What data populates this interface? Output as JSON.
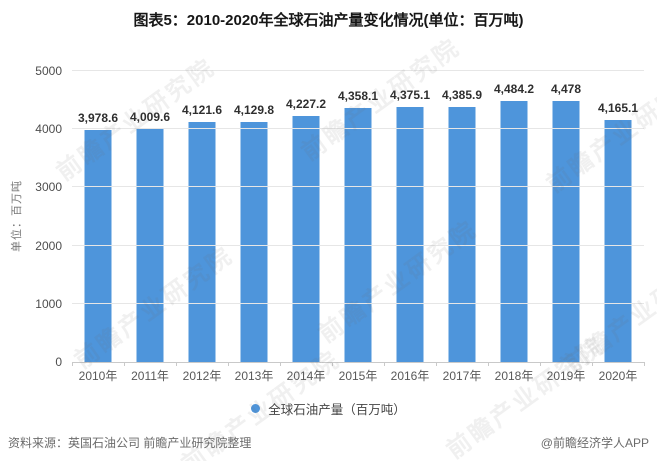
{
  "title": "图表5：2010-2020年全球石油产量变化情况(单位：百万吨)",
  "chart_data": {
    "type": "bar",
    "categories": [
      "2010年",
      "2011年",
      "2012年",
      "2013年",
      "2014年",
      "2015年",
      "2016年",
      "2017年",
      "2018年",
      "2019年",
      "2020年"
    ],
    "values": [
      3978.6,
      4009.6,
      4121.6,
      4129.8,
      4227.2,
      4358.1,
      4375.1,
      4385.9,
      4484.2,
      4478,
      4165.1
    ],
    "value_labels": [
      "3,978.6",
      "4,009.6",
      "4,121.6",
      "4,129.8",
      "4,227.2",
      "4,358.1",
      "4,375.1",
      "4,385.9",
      "4,484.2",
      "4,478",
      "4,165.1"
    ],
    "title": "图表5：2010-2020年全球石油产量变化情况(单位：百万吨)",
    "xlabel": "",
    "ylabel": "单位：百万吨",
    "ylim": [
      0,
      5000
    ],
    "ytick_interval": 1000,
    "grid": true,
    "legend": "全球石油产量（百万吨）",
    "legend_position": "bottom",
    "bar_color": "#4E95DB"
  },
  "footer": {
    "source": "资料来源：英国石油公司 前瞻产业研究院整理",
    "attribution": "@前瞻经济学人APP"
  },
  "watermark": {
    "text": "前瞻产业研究院"
  }
}
